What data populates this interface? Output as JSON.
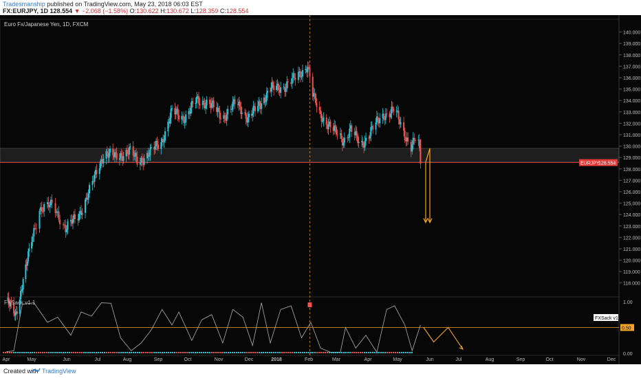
{
  "header": {
    "author": "Tradesmanship",
    "published_text": "published on TradingView.com, May 23, 2018 06:03 EST",
    "symbol": "FX:EURJPY, 1D",
    "last": "128.554",
    "change": "▼ −2.068 (−1.58%)",
    "o_label": "O:",
    "o_value": "130.622",
    "h_label": "H:",
    "h_value": "130.672",
    "l_label": "L:",
    "l_value": "128.359",
    "c_label": "C:",
    "c_value": "128.554"
  },
  "pane_title": "Euro Fx/Japanese Yen, 1D, FXCM",
  "indicator_title": "FXSack v1.1",
  "footer": {
    "created": "Created with",
    "brand": "TradingView"
  },
  "colors": {
    "up": "#26c6da",
    "down": "#ef5350",
    "accent": "#f5a623",
    "last_price": "#e53935"
  },
  "chart_data": {
    "type": "candlestick",
    "symbol_label": "EURJPY",
    "last_price": 128.554,
    "last_price_label": "128.554",
    "ylim": [
      116.9,
      141.0
    ],
    "y_ticks": [
      "118.000",
      "119.000",
      "120.000",
      "121.000",
      "122.000",
      "123.000",
      "124.000",
      "125.000",
      "126.000",
      "127.000",
      "128.000",
      "129.000",
      "130.000",
      "131.000",
      "132.000",
      "133.000",
      "134.000",
      "135.000",
      "136.000",
      "137.000",
      "138.000",
      "139.000",
      "140.000"
    ],
    "x_ticks": [
      "Apr",
      "May",
      "Jun",
      "Jul",
      "Aug",
      "Sep",
      "Oct",
      "Nov",
      "Dec",
      "2018",
      "Feb",
      "Mar",
      "Apr",
      "May",
      "Jun",
      "Jul",
      "Aug",
      "Sep",
      "Oct",
      "Nov",
      "Dec"
    ],
    "bold_ticks": [
      "2018"
    ],
    "price_path": [
      [
        "2017-04-01",
        116.5
      ],
      [
        "2017-04-12",
        115.2
      ],
      [
        "2017-04-25",
        119.5
      ],
      [
        "2017-05-08",
        124.5
      ],
      [
        "2017-05-20",
        124.8
      ],
      [
        "2017-05-31",
        122.8
      ],
      [
        "2017-06-12",
        123.8
      ],
      [
        "2017-06-25",
        126.5
      ],
      [
        "2017-07-08",
        129.5
      ],
      [
        "2017-07-20",
        129.0
      ],
      [
        "2017-08-03",
        129.6
      ],
      [
        "2017-08-12",
        128.6
      ],
      [
        "2017-08-25",
        129.5
      ],
      [
        "2017-09-05",
        130.5
      ],
      [
        "2017-09-15",
        133.0
      ],
      [
        "2017-09-28",
        132.5
      ],
      [
        "2017-10-10",
        134.0
      ],
      [
        "2017-10-22",
        133.8
      ],
      [
        "2017-11-05",
        132.5
      ],
      [
        "2017-11-18",
        133.8
      ],
      [
        "2017-11-30",
        132.5
      ],
      [
        "2017-12-12",
        133.5
      ],
      [
        "2017-12-25",
        135.0
      ],
      [
        "2018-01-08",
        135.2
      ],
      [
        "2018-01-20",
        136.0
      ],
      [
        "2018-01-31",
        137.1
      ],
      [
        "2018-02-05",
        134.5
      ],
      [
        "2018-02-12",
        132.8
      ],
      [
        "2018-02-25",
        131.5
      ],
      [
        "2018-03-08",
        130.5
      ],
      [
        "2018-03-15",
        131.5
      ],
      [
        "2018-03-25",
        130.0
      ],
      [
        "2018-04-05",
        131.5
      ],
      [
        "2018-04-18",
        132.8
      ],
      [
        "2018-04-28",
        133.2
      ],
      [
        "2018-05-08",
        131.0
      ],
      [
        "2018-05-14",
        130.0
      ],
      [
        "2018-05-20",
        130.9
      ],
      [
        "2018-05-23",
        128.554
      ]
    ],
    "support_zone": [
      128.6,
      129.8
    ],
    "event_marker_date": "2018-02-02",
    "projection_arrows": [
      [
        [
          "2018-05-28",
          128.6
        ],
        [
          "2018-05-28",
          123.3
        ]
      ],
      [
        [
          "2018-05-28",
          128.6
        ],
        [
          "2018-06-01",
          129.8
        ],
        [
          "2018-06-01",
          123.3
        ]
      ]
    ],
    "indicator": {
      "name": "FXSack v1.1",
      "level_label": "0.50",
      "tag_label": "FXSack v1.1",
      "ylim": [
        0,
        1
      ],
      "y_ticks": [
        "0.00",
        "0.50",
        "1.00"
      ],
      "level": 0.5,
      "points": [
        [
          "2017-04-01",
          0.03
        ],
        [
          "2017-04-10",
          0.05
        ],
        [
          "2017-04-20",
          0.95
        ],
        [
          "2017-05-03",
          0.98
        ],
        [
          "2017-05-15",
          0.6
        ],
        [
          "2017-05-24",
          0.7
        ],
        [
          "2017-06-05",
          0.35
        ],
        [
          "2017-06-15",
          0.8
        ],
        [
          "2017-06-25",
          0.72
        ],
        [
          "2017-07-05",
          0.98
        ],
        [
          "2017-07-15",
          0.97
        ],
        [
          "2017-07-25",
          0.3
        ],
        [
          "2017-08-05",
          0.05
        ],
        [
          "2017-08-15",
          0.2
        ],
        [
          "2017-08-25",
          0.45
        ],
        [
          "2017-09-05",
          0.85
        ],
        [
          "2017-09-15",
          0.55
        ],
        [
          "2017-09-22",
          0.8
        ],
        [
          "2017-10-05",
          0.25
        ],
        [
          "2017-10-15",
          0.65
        ],
        [
          "2017-10-25",
          0.75
        ],
        [
          "2017-11-05",
          0.2
        ],
        [
          "2017-11-15",
          0.85
        ],
        [
          "2017-11-25",
          0.7
        ],
        [
          "2017-12-05",
          0.15
        ],
        [
          "2017-12-15",
          0.98
        ],
        [
          "2017-12-25",
          0.2
        ],
        [
          "2018-01-05",
          0.85
        ],
        [
          "2018-01-15",
          0.92
        ],
        [
          "2018-01-25",
          0.3
        ],
        [
          "2018-02-03",
          0.6
        ],
        [
          "2018-02-13",
          0.1
        ],
        [
          "2018-02-23",
          0.02
        ],
        [
          "2018-03-05",
          0.02
        ],
        [
          "2018-03-10",
          0.5
        ],
        [
          "2018-03-20",
          0.1
        ],
        [
          "2018-03-30",
          0.35
        ],
        [
          "2018-04-10",
          0.02
        ],
        [
          "2018-04-20",
          0.85
        ],
        [
          "2018-04-28",
          0.92
        ],
        [
          "2018-05-08",
          0.55
        ],
        [
          "2018-05-15",
          0.05
        ],
        [
          "2018-05-23",
          0.55
        ]
      ],
      "projection": [
        [
          "2018-05-26",
          0.5
        ],
        [
          "2018-06-05",
          0.22
        ],
        [
          "2018-06-20",
          0.5
        ],
        [
          "2018-07-05",
          0.08
        ]
      ]
    }
  }
}
